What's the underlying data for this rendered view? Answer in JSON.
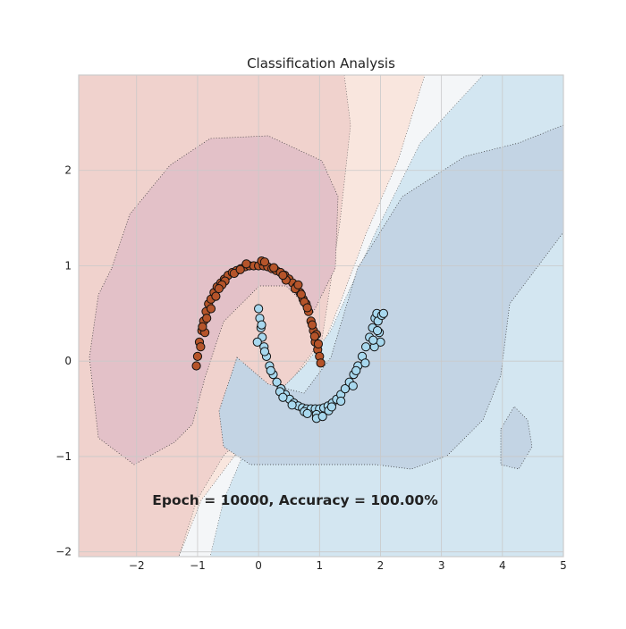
{
  "chart_data": {
    "type": "scatter",
    "title": "Classification Analysis",
    "annotation": "Epoch = 10000, Accuracy = 100.00%",
    "xlim": [
      -2.95,
      5.0
    ],
    "ylim": [
      -2.05,
      3.0
    ],
    "xticks": [
      "−2",
      "−1",
      "0",
      "1",
      "2",
      "3",
      "4",
      "5"
    ],
    "yticks": [
      "−2",
      "−1",
      "0",
      "1",
      "2"
    ],
    "xtick_values": [
      -2,
      -1,
      0,
      1,
      2,
      3,
      4,
      5
    ],
    "ytick_values": [
      -2,
      -1,
      0,
      1,
      2
    ],
    "grid": true,
    "colors": {
      "class_0": "#b5542a",
      "class_1": "#a8d8ee",
      "marker_edge": "#111111",
      "region_far_red": "#f9e6de",
      "region_red": "#f0d2cd",
      "region_core_red": "#e3c1c8",
      "region_mid": "#f4f6f8",
      "region_blue": "#d3e6f1",
      "region_core_blue": "#c3d4e4",
      "axes_border": "#cccccc",
      "grid": "#c9c9c9",
      "text": "#222222"
    },
    "series": [
      {
        "class": 0,
        "shape": "upper half-moon",
        "x": [
          -1.0,
          -0.97,
          -0.93,
          -0.9,
          -0.86,
          -0.82,
          -0.78,
          -0.73,
          -0.68,
          -0.62,
          -0.56,
          -0.5,
          -0.43,
          -0.36,
          -0.29,
          -0.22,
          -0.15,
          -0.08,
          0.0,
          0.08,
          0.15,
          0.22,
          0.29,
          0.36,
          0.43,
          0.5,
          0.56,
          0.62,
          0.68,
          0.73,
          0.78,
          0.82,
          0.86,
          0.9,
          0.93,
          0.97,
          1.0,
          -0.95,
          -0.85,
          -0.7,
          -0.55,
          -0.4,
          -0.2,
          0.05,
          0.25,
          0.45,
          0.6,
          0.75,
          0.88,
          0.98,
          -0.88,
          -0.6,
          -0.3,
          0.1,
          0.4,
          0.7,
          0.95,
          -0.78,
          -0.65,
          0.65,
          0.8,
          -1.02,
          1.02,
          -0.92,
          0.92
        ],
        "y": [
          0.05,
          0.2,
          0.32,
          0.42,
          0.52,
          0.6,
          0.65,
          0.72,
          0.78,
          0.82,
          0.86,
          0.9,
          0.93,
          0.95,
          0.97,
          0.99,
          1.0,
          1.0,
          1.0,
          1.0,
          0.99,
          0.97,
          0.95,
          0.93,
          0.9,
          0.86,
          0.82,
          0.78,
          0.72,
          0.65,
          0.6,
          0.52,
          0.42,
          0.32,
          0.2,
          0.12,
          0.05,
          0.15,
          0.45,
          0.68,
          0.84,
          0.92,
          1.02,
          1.05,
          0.98,
          0.85,
          0.76,
          0.62,
          0.38,
          0.18,
          0.3,
          0.8,
          0.96,
          1.04,
          0.9,
          0.7,
          0.28,
          0.55,
          0.76,
          0.8,
          0.56,
          -0.05,
          -0.02,
          0.36,
          0.26
        ]
      },
      {
        "class": 1,
        "shape": "lower half-moon",
        "x": [
          0.0,
          0.02,
          0.04,
          0.06,
          0.09,
          0.13,
          0.18,
          0.24,
          0.3,
          0.37,
          0.44,
          0.51,
          0.58,
          0.65,
          0.72,
          0.79,
          0.86,
          0.93,
          1.0,
          1.07,
          1.14,
          1.21,
          1.28,
          1.35,
          1.42,
          1.49,
          1.56,
          1.63,
          1.7,
          1.76,
          1.82,
          1.87,
          1.91,
          1.94,
          1.96,
          1.98,
          2.0,
          0.05,
          0.2,
          0.35,
          0.55,
          0.75,
          0.95,
          1.15,
          1.35,
          1.55,
          1.75,
          1.9,
          2.02,
          0.1,
          0.4,
          0.8,
          1.2,
          1.6,
          1.95,
          1.88,
          2.05,
          -0.02,
          0.95,
          1.05
        ],
        "y": [
          0.55,
          0.45,
          0.35,
          0.25,
          0.15,
          0.05,
          -0.05,
          -0.14,
          -0.22,
          -0.29,
          -0.35,
          -0.4,
          -0.44,
          -0.47,
          -0.49,
          -0.5,
          -0.5,
          -0.5,
          -0.5,
          -0.49,
          -0.47,
          -0.44,
          -0.4,
          -0.35,
          -0.29,
          -0.22,
          -0.14,
          -0.05,
          0.05,
          0.15,
          0.25,
          0.35,
          0.45,
          0.5,
          0.42,
          0.3,
          0.2,
          0.38,
          -0.1,
          -0.32,
          -0.46,
          -0.53,
          -0.56,
          -0.52,
          -0.42,
          -0.26,
          -0.02,
          0.15,
          0.48,
          0.1,
          -0.38,
          -0.55,
          -0.48,
          -0.1,
          0.32,
          0.22,
          0.5,
          0.2,
          -0.6,
          -0.58
        ]
      }
    ]
  }
}
